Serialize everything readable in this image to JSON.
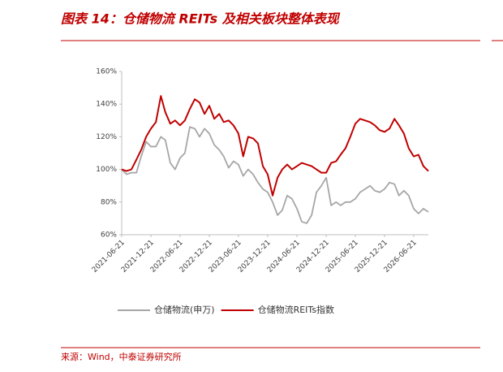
{
  "title": "图表 14：仓储物流 REITs 及相关板块整体表现",
  "source": "来源：Wind，中泰证券研究所",
  "chart_data": {
    "type": "line",
    "x": [
      "2021-06-21",
      "2021-07-21",
      "2021-08-21",
      "2021-09-21",
      "2021-10-21",
      "2021-11-21",
      "2021-12-21",
      "2022-01-21",
      "2022-02-21",
      "2022-03-21",
      "2022-04-21",
      "2022-05-21",
      "2022-06-21",
      "2022-07-21",
      "2022-08-21",
      "2022-09-21",
      "2022-10-21",
      "2022-11-21",
      "2022-12-21",
      "2023-01-21",
      "2023-02-21",
      "2023-03-21",
      "2023-04-21",
      "2023-05-21",
      "2023-06-21",
      "2023-07-21",
      "2023-08-21",
      "2023-09-21",
      "2023-10-21",
      "2023-11-21",
      "2023-12-21",
      "2024-01-21",
      "2024-02-21",
      "2024-03-21",
      "2024-04-21",
      "2024-05-21",
      "2024-06-21",
      "2024-07-21",
      "2024-08-21",
      "2024-09-21",
      "2024-10-21",
      "2024-11-21",
      "2024-12-21",
      "2025-01-21",
      "2025-02-21",
      "2025-03-21",
      "2025-04-21",
      "2025-05-21",
      "2025-06-21",
      "2025-07-21",
      "2025-08-21",
      "2025-09-21",
      "2025-10-21",
      "2025-11-21",
      "2025-12-21",
      "2026-01-21",
      "2026-02-21",
      "2026-03-21",
      "2026-04-21",
      "2026-05-21",
      "2026-06-21",
      "2026-07-21",
      "2026-08-21",
      "2026-09-21"
    ],
    "series": [
      {
        "name": "仓储物流(申万)",
        "color": "#a6a6a6",
        "values": [
          100,
          97,
          98,
          98,
          108,
          117,
          114,
          114,
          120,
          118,
          104,
          100,
          107,
          110,
          126,
          125,
          120,
          125,
          122,
          115,
          112,
          108,
          101,
          105,
          103,
          96,
          100,
          97,
          92,
          88,
          86,
          80,
          72,
          75,
          84,
          82,
          76,
          68,
          67,
          72,
          86,
          90,
          95,
          78,
          80,
          78,
          80,
          80,
          82,
          86,
          88,
          90,
          87,
          86,
          88,
          92,
          91,
          84,
          87,
          84,
          76,
          73,
          76,
          74
        ]
      },
      {
        "name": "仓储物流REITs指数",
        "color": "#c00000",
        "values": [
          100,
          99,
          100,
          106,
          112,
          120,
          125,
          129,
          145,
          135,
          128,
          130,
          127,
          130,
          137,
          143,
          141,
          134,
          139,
          131,
          134,
          129,
          130,
          127,
          122,
          108,
          120,
          119,
          116,
          102,
          97,
          84,
          95,
          100,
          103,
          100,
          102,
          104,
          103,
          102,
          100,
          98,
          98,
          104,
          105,
          109,
          113,
          120,
          128,
          131,
          130,
          129,
          127,
          124,
          123,
          125,
          131,
          127,
          122,
          113,
          108,
          109,
          102,
          99
        ]
      }
    ],
    "xlim": [
      "2021-06-21",
      "2026-09-21"
    ],
    "xticks": [
      "2021-06-21",
      "2021-12-21",
      "2022-06-21",
      "2022-12-21",
      "2023-06-21",
      "2023-12-21",
      "2024-06-21",
      "2024-12-21",
      "2025-06-21",
      "2025-12-21",
      "2026-06-21"
    ],
    "ylim": [
      60,
      160
    ],
    "yticks": [
      {
        "value": 60,
        "label": "60%"
      },
      {
        "value": 80,
        "label": "80%"
      },
      {
        "value": 100,
        "label": "100%"
      },
      {
        "value": 120,
        "label": "120%"
      },
      {
        "value": 140,
        "label": "140%"
      },
      {
        "value": 160,
        "label": "160%"
      }
    ]
  }
}
